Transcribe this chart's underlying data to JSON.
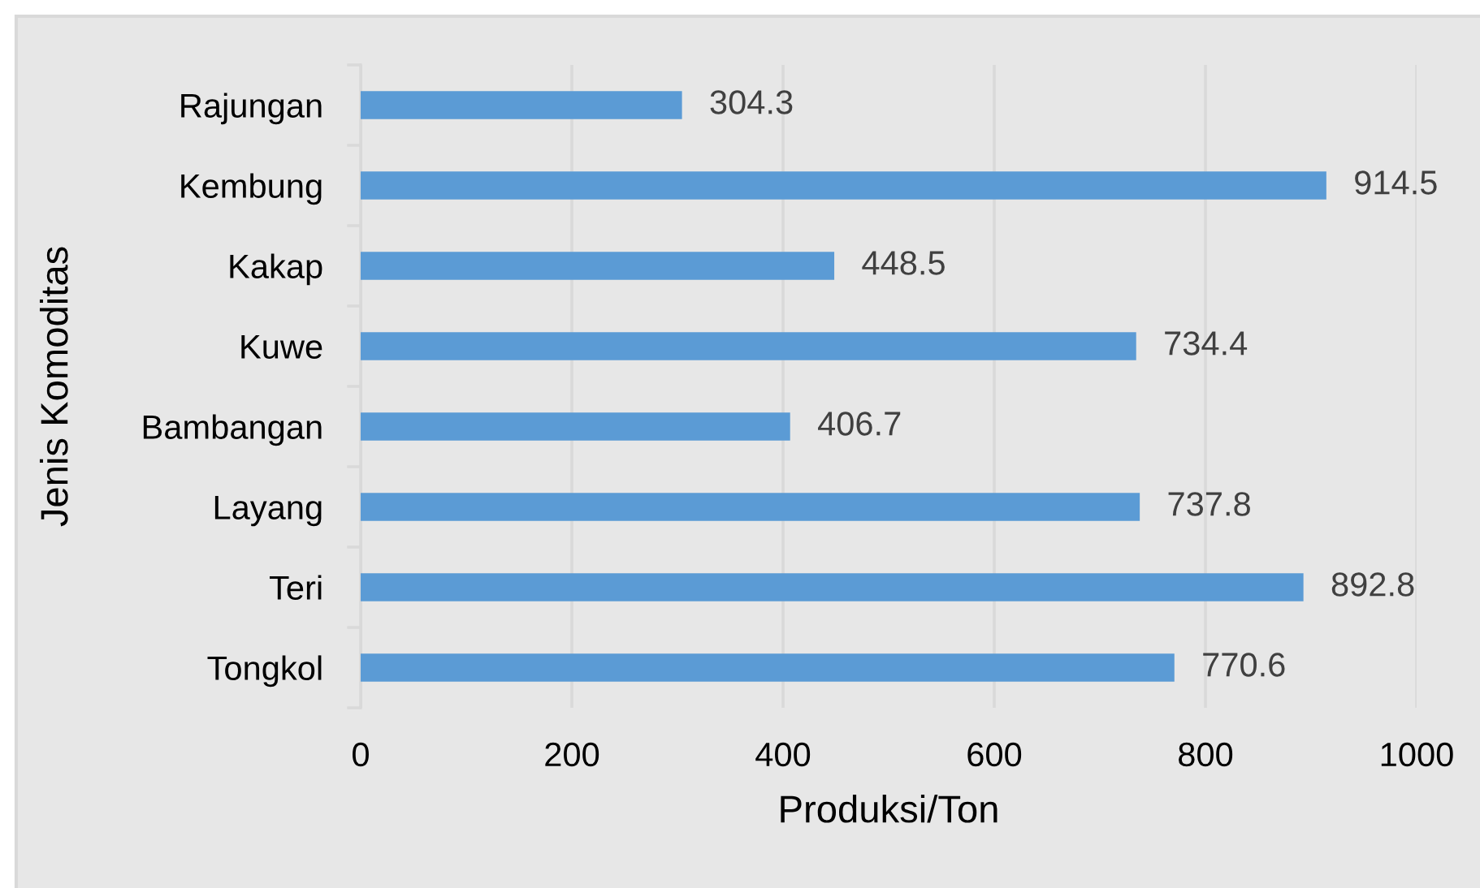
{
  "chart_data": {
    "type": "bar",
    "orientation": "horizontal",
    "xlabel": "Produksi/Ton",
    "ylabel": "Jenis Komoditas",
    "categories": [
      "Rajungan",
      "Kembung",
      "Kakap",
      "Kuwe",
      "Bambangan",
      "Layang",
      "Teri",
      "Tongkol"
    ],
    "values": [
      304.3,
      914.5,
      448.5,
      734.4,
      406.7,
      737.8,
      892.8,
      770.6
    ],
    "color": "#5b9bd5",
    "xlim": [
      0,
      1000
    ],
    "xticks": [
      0,
      200,
      400,
      600,
      800,
      1000
    ],
    "grid": "x",
    "data_labels": true
  }
}
